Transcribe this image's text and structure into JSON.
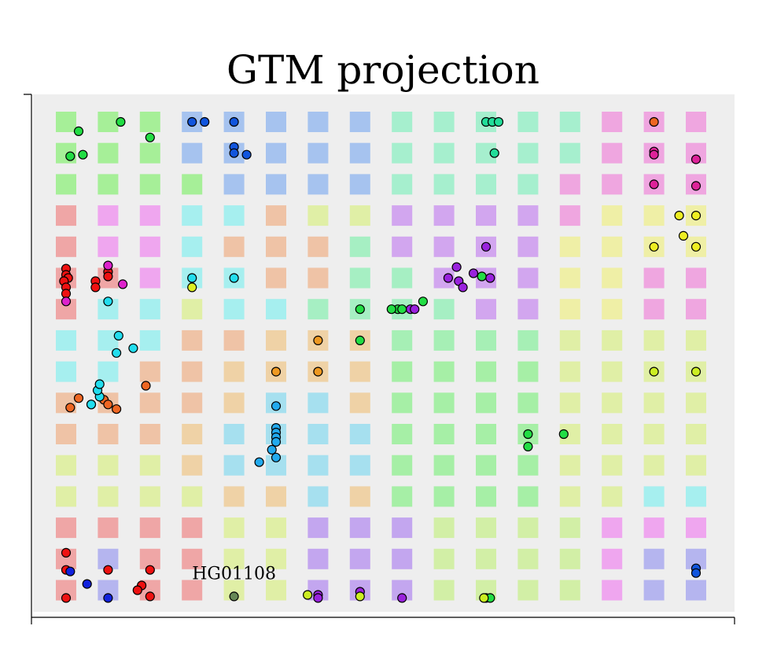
{
  "chart_data": {
    "type": "scatter",
    "title": "GTM projection",
    "xlabel": "",
    "ylabel": "",
    "grid": {
      "cols": 16,
      "rows": 16,
      "cell_colors": [
        [
          "#99ee88",
          "#99ee88",
          "#99ee88",
          "#99bbee",
          "#99bbee",
          "#99bbee",
          "#99bbee",
          "#99bbee",
          "#99eec8",
          "#99eec8",
          "#99eec8",
          "#99eec8",
          "#99eec8",
          "#ee99dd",
          "#ee99dd",
          "#ee99dd"
        ],
        [
          "#99ee88",
          "#99ee88",
          "#99ee88",
          "#99bbee",
          "#99bbee",
          "#99bbee",
          "#99bbee",
          "#99bbee",
          "#99eec8",
          "#99eec8",
          "#99eec8",
          "#99eec8",
          "#99eec8",
          "#ee99dd",
          "#ee99dd",
          "#ee99dd"
        ],
        [
          "#99ee88",
          "#99ee88",
          "#99ee88",
          "#99ee88",
          "#99bbee",
          "#99bbee",
          "#99bbee",
          "#99bbee",
          "#99eec8",
          "#99eec8",
          "#99eec8",
          "#99eec8",
          "#ee99dd",
          "#ee99dd",
          "#ee99dd",
          "#ee99dd"
        ],
        [
          "#ee9999",
          "#ee99ee",
          "#ee99ee",
          "#99eeee",
          "#99eeee",
          "#eebb99",
          "#ddee99",
          "#ddee99",
          "#cc99ee",
          "#cc99ee",
          "#cc99ee",
          "#cc99ee",
          "#ee99dd",
          "#eeee99",
          "#eeee99",
          "#eeee99"
        ],
        [
          "#ee9999",
          "#ee99ee",
          "#ee99ee",
          "#99eeee",
          "#eebb99",
          "#eebb99",
          "#eebb99",
          "#99eebb",
          "#cc99ee",
          "#cc99ee",
          "#cc99ee",
          "#cc99ee",
          "#eeee99",
          "#eeee99",
          "#eeee99",
          "#eeee99"
        ],
        [
          "#ee9999",
          "#ee9999",
          "#ee99ee",
          "#99eeee",
          "#99eeee",
          "#eebb99",
          "#eebb99",
          "#99eebb",
          "#99eebb",
          "#cc99ee",
          "#cc99ee",
          "#cc99ee",
          "#eeee99",
          "#eeee99",
          "#ee99dd",
          "#ee99dd"
        ],
        [
          "#ee9999",
          "#99eeee",
          "#99eeee",
          "#ddee99",
          "#99eeee",
          "#99eeee",
          "#99eebb",
          "#99eebb",
          "#99eebb",
          "#99eebb",
          "#cc99ee",
          "#cc99ee",
          "#eeee99",
          "#eeee99",
          "#ee99dd",
          "#ee99dd"
        ],
        [
          "#99eeee",
          "#99eeee",
          "#99eeee",
          "#eebb99",
          "#eebb99",
          "#eecc99",
          "#eecc99",
          "#eecc99",
          "#99eeaa",
          "#99eeaa",
          "#99eeaa",
          "#99eeaa",
          "#ddee99",
          "#ddee99",
          "#ddee99",
          "#ddee99"
        ],
        [
          "#99eeee",
          "#99eeee",
          "#eebb99",
          "#eebb99",
          "#eecc99",
          "#eecc99",
          "#eecc99",
          "#eecc99",
          "#99ee99",
          "#99ee99",
          "#99ee99",
          "#99ee99",
          "#ddee99",
          "#ddee99",
          "#ddee99",
          "#ddee99"
        ],
        [
          "#eebb99",
          "#eebb99",
          "#eebb99",
          "#eebb99",
          "#eecc99",
          "#99ddee",
          "#99ddee",
          "#eecc99",
          "#99ee99",
          "#99ee99",
          "#99ee99",
          "#99ee99",
          "#ddee99",
          "#ddee99",
          "#ddee99",
          "#ddee99"
        ],
        [
          "#eebb99",
          "#eebb99",
          "#eebb99",
          "#eecc99",
          "#99ddee",
          "#99ddee",
          "#99ddee",
          "#99ddee",
          "#99ee99",
          "#99ee99",
          "#99ee99",
          "#99ee99",
          "#ddee99",
          "#ddee99",
          "#ddee99",
          "#ddee99"
        ],
        [
          "#ddee99",
          "#ddee99",
          "#ddee99",
          "#eecc99",
          "#99ddee",
          "#99ddee",
          "#99ddee",
          "#99ddee",
          "#99ee99",
          "#99ee99",
          "#99ee99",
          "#99ee99",
          "#ddee99",
          "#ddee99",
          "#ddee99",
          "#ddee99"
        ],
        [
          "#ddee99",
          "#ddee99",
          "#ddee99",
          "#ddee99",
          "#eecc99",
          "#eecc99",
          "#99ddee",
          "#eecc99",
          "#99ee99",
          "#99ee99",
          "#99ee99",
          "#99ee99",
          "#ddee99",
          "#ddee99",
          "#99eeee",
          "#99eeee"
        ],
        [
          "#ee9999",
          "#ee9999",
          "#ee9999",
          "#ee9999",
          "#ddee99",
          "#ddee99",
          "#bb99ee",
          "#bb99ee",
          "#bb99ee",
          "#ccee99",
          "#ccee99",
          "#ccee99",
          "#ccee99",
          "#ee99ee",
          "#ee99ee",
          "#ee99ee"
        ],
        [
          "#ee9999",
          "#aaaaee",
          "#ee9999",
          "#ee9999",
          "#ddee99",
          "#ddee99",
          "#bb99ee",
          "#bb99ee",
          "#bb99ee",
          "#ccee99",
          "#ccee99",
          "#ccee99",
          "#ccee99",
          "#ee99ee",
          "#aaaaee",
          "#aaaaee"
        ],
        [
          "#ee9999",
          "#aaaaee",
          "#ee9999",
          "#ee9999",
          "#ddee99",
          "#ddee99",
          "#bb99ee",
          "#bb99ee",
          "#bb99ee",
          "#ccee99",
          "#ccee99",
          "#ccee99",
          "#ccee99",
          "#ee99ee",
          "#aaaaee",
          "#aaaaee"
        ]
      ]
    },
    "points": [
      {
        "x": 0.3,
        "y": 0.3,
        "color": "#22dd44"
      },
      {
        "x": 1.3,
        "y": 0,
        "color": "#22dd44"
      },
      {
        "x": 0.1,
        "y": 1.1,
        "color": "#22dd44"
      },
      {
        "x": 0.4,
        "y": 1.05,
        "color": "#22dd44"
      },
      {
        "x": 2.0,
        "y": 0.5,
        "color": "#22dd44"
      },
      {
        "x": 3.0,
        "y": 0,
        "color": "#1155dd"
      },
      {
        "x": 3.3,
        "y": 0,
        "color": "#1155dd"
      },
      {
        "x": 4.0,
        "y": 0,
        "color": "#1155dd"
      },
      {
        "x": 4.0,
        "y": 0.8,
        "color": "#1155dd"
      },
      {
        "x": 4.0,
        "y": 1.0,
        "color": "#1155dd"
      },
      {
        "x": 4.3,
        "y": 1.05,
        "color": "#1155dd"
      },
      {
        "x": 10.0,
        "y": 0,
        "color": "#22dd99"
      },
      {
        "x": 10.15,
        "y": 0,
        "color": "#22dd99"
      },
      {
        "x": 10.3,
        "y": 0,
        "color": "#22dd99"
      },
      {
        "x": 10.2,
        "y": 1.0,
        "color": "#22dd99"
      },
      {
        "x": 14.0,
        "y": 0,
        "color": "#ee6622"
      },
      {
        "x": 14.0,
        "y": 0.95,
        "color": "#dd2299"
      },
      {
        "x": 14.0,
        "y": 1.05,
        "color": "#dd2299"
      },
      {
        "x": 15.0,
        "y": 1.2,
        "color": "#dd2299"
      },
      {
        "x": 14.0,
        "y": 2.0,
        "color": "#dd2299"
      },
      {
        "x": 15.0,
        "y": 2.05,
        "color": "#dd2299"
      },
      {
        "x": 14.6,
        "y": 3.0,
        "color": "#eeee22"
      },
      {
        "x": 15.0,
        "y": 3.0,
        "color": "#eeee22"
      },
      {
        "x": 14.7,
        "y": 3.65,
        "color": "#eeee22"
      },
      {
        "x": 14.0,
        "y": 4.0,
        "color": "#eeee22"
      },
      {
        "x": 15.0,
        "y": 4.0,
        "color": "#eeee22"
      },
      {
        "x": 10.0,
        "y": 4.0,
        "color": "#9922dd"
      },
      {
        "x": 9.3,
        "y": 4.65,
        "color": "#9922dd"
      },
      {
        "x": 9.7,
        "y": 4.85,
        "color": "#9922dd"
      },
      {
        "x": 9.1,
        "y": 5.0,
        "color": "#9922dd"
      },
      {
        "x": 9.35,
        "y": 5.1,
        "color": "#9922dd"
      },
      {
        "x": 9.9,
        "y": 4.95,
        "color": "#22dd44"
      },
      {
        "x": 10.1,
        "y": 5.0,
        "color": "#9922dd"
      },
      {
        "x": 9.45,
        "y": 5.3,
        "color": "#9922dd"
      },
      {
        "x": 8.2,
        "y": 6.0,
        "color": "#9922dd"
      },
      {
        "x": 8.3,
        "y": 6.0,
        "color": "#9922dd"
      },
      {
        "x": 8.5,
        "y": 5.75,
        "color": "#22dd44"
      },
      {
        "x": 7.9,
        "y": 6.0,
        "color": "#22dd44"
      },
      {
        "x": 8.0,
        "y": 6.0,
        "color": "#22dd44"
      },
      {
        "x": 7.75,
        "y": 6.0,
        "color": "#22dd44"
      },
      {
        "x": 7.0,
        "y": 6.0,
        "color": "#22dd44"
      },
      {
        "x": 7.0,
        "y": 7.0,
        "color": "#22dd44"
      },
      {
        "x": 0,
        "y": 4.7,
        "color": "#ee1111"
      },
      {
        "x": 0,
        "y": 4.9,
        "color": "#ee1111"
      },
      {
        "x": 0.05,
        "y": 5.0,
        "color": "#ee1111"
      },
      {
        "x": -0.05,
        "y": 5.1,
        "color": "#ee1111"
      },
      {
        "x": 0,
        "y": 5.3,
        "color": "#ee1111"
      },
      {
        "x": 0,
        "y": 5.5,
        "color": "#ee1111"
      },
      {
        "x": 0.7,
        "y": 5.1,
        "color": "#ee1111"
      },
      {
        "x": 0.7,
        "y": 5.3,
        "color": "#ee1111"
      },
      {
        "x": 1.0,
        "y": 4.8,
        "color": "#ee1111"
      },
      {
        "x": 1.0,
        "y": 4.95,
        "color": "#ee1111"
      },
      {
        "x": 1.0,
        "y": 4.6,
        "color": "#dd22cc"
      },
      {
        "x": 1.35,
        "y": 5.2,
        "color": "#dd22cc"
      },
      {
        "x": 0,
        "y": 5.75,
        "color": "#dd22cc"
      },
      {
        "x": 3.0,
        "y": 5.0,
        "color": "#22ddee"
      },
      {
        "x": 4.0,
        "y": 5.0,
        "color": "#22ddee"
      },
      {
        "x": 3.0,
        "y": 5.3,
        "color": "#ddee22"
      },
      {
        "x": 1.0,
        "y": 5.75,
        "color": "#22ddee"
      },
      {
        "x": 1.25,
        "y": 6.85,
        "color": "#22ddee"
      },
      {
        "x": 1.6,
        "y": 7.25,
        "color": "#22ddee"
      },
      {
        "x": 1.2,
        "y": 7.4,
        "color": "#22ddee"
      },
      {
        "x": 1.9,
        "y": 8.45,
        "color": "#ee6622"
      },
      {
        "x": 0.3,
        "y": 8.85,
        "color": "#ee6622"
      },
      {
        "x": 0.6,
        "y": 9.05,
        "color": "#ee6622"
      },
      {
        "x": 0.1,
        "y": 9.15,
        "color": "#ee6622"
      },
      {
        "x": 0.9,
        "y": 8.9,
        "color": "#ee6622"
      },
      {
        "x": 1.0,
        "y": 9.05,
        "color": "#ee6622"
      },
      {
        "x": 1.2,
        "y": 9.2,
        "color": "#ee6622"
      },
      {
        "x": 0.8,
        "y": 8.8,
        "color": "#22ddee"
      },
      {
        "x": 0.75,
        "y": 8.6,
        "color": "#22ddee"
      },
      {
        "x": 0.8,
        "y": 8.4,
        "color": "#22ddee"
      },
      {
        "x": 0.6,
        "y": 9.05,
        "color": "#22ddee"
      },
      {
        "x": 6.0,
        "y": 7.0,
        "color": "#ee9922"
      },
      {
        "x": 5.0,
        "y": 8.0,
        "color": "#ee9922"
      },
      {
        "x": 6.0,
        "y": 8.0,
        "color": "#ee9922"
      },
      {
        "x": 5.0,
        "y": 9.1,
        "color": "#22aaee"
      },
      {
        "x": 5.0,
        "y": 9.8,
        "color": "#22aaee"
      },
      {
        "x": 5.0,
        "y": 9.95,
        "color": "#22aaee"
      },
      {
        "x": 5.0,
        "y": 10.1,
        "color": "#22aaee"
      },
      {
        "x": 5.0,
        "y": 10.25,
        "color": "#22aaee"
      },
      {
        "x": 4.9,
        "y": 10.5,
        "color": "#22aaee"
      },
      {
        "x": 5.0,
        "y": 10.75,
        "color": "#22aaee"
      },
      {
        "x": 4.6,
        "y": 10.9,
        "color": "#22aaee"
      },
      {
        "x": 14.0,
        "y": 8.0,
        "color": "#ccee22"
      },
      {
        "x": 15.0,
        "y": 8.0,
        "color": "#ccee22"
      },
      {
        "x": 11.0,
        "y": 10.0,
        "color": "#22dd44"
      },
      {
        "x": 11.0,
        "y": 10.4,
        "color": "#22dd44"
      },
      {
        "x": 11.85,
        "y": 10.0,
        "color": "#22dd44"
      },
      {
        "x": 0,
        "y": 13.8,
        "color": "#ee1111"
      },
      {
        "x": 0,
        "y": 14.35,
        "color": "#ee1111"
      },
      {
        "x": 1.0,
        "y": 14.35,
        "color": "#ee1111"
      },
      {
        "x": 2.0,
        "y": 14.35,
        "color": "#ee1111"
      },
      {
        "x": 1.8,
        "y": 14.85,
        "color": "#ee1111"
      },
      {
        "x": 1.7,
        "y": 15.0,
        "color": "#ee1111"
      },
      {
        "x": 2.0,
        "y": 15.2,
        "color": "#ee1111"
      },
      {
        "x": 0,
        "y": 15.25,
        "color": "#ee1111"
      },
      {
        "x": 0.1,
        "y": 14.4,
        "color": "#1122dd"
      },
      {
        "x": 0.5,
        "y": 14.8,
        "color": "#1122dd"
      },
      {
        "x": 1.0,
        "y": 15.25,
        "color": "#1122dd"
      },
      {
        "x": 4.0,
        "y": 15.2,
        "color": "#668855"
      },
      {
        "x": 5.75,
        "y": 15.15,
        "color": "#ccee22"
      },
      {
        "x": 6.0,
        "y": 15.15,
        "color": "#9922dd"
      },
      {
        "x": 6.0,
        "y": 15.25,
        "color": "#9922dd"
      },
      {
        "x": 7.0,
        "y": 15.05,
        "color": "#9922dd"
      },
      {
        "x": 7.0,
        "y": 15.2,
        "color": "#ccee22"
      },
      {
        "x": 8.0,
        "y": 15.25,
        "color": "#9922dd"
      },
      {
        "x": 10.0,
        "y": 15.25,
        "color": "#22dd44"
      },
      {
        "x": 10.1,
        "y": 15.25,
        "color": "#22dd44"
      },
      {
        "x": 9.95,
        "y": 15.25,
        "color": "#ccee22"
      },
      {
        "x": 15.0,
        "y": 14.3,
        "color": "#1155dd"
      },
      {
        "x": 15.0,
        "y": 14.45,
        "color": "#1155dd"
      }
    ],
    "annotations": [
      {
        "text": "HG01108",
        "x": 4.0,
        "y": 14.65
      }
    ]
  }
}
